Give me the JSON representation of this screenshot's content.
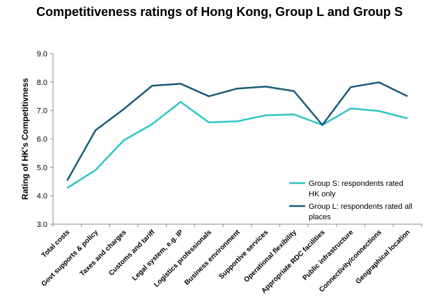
{
  "chart_data": {
    "type": "line",
    "title": "Competitiveness ratings of Hong Kong, Group L and Group S",
    "xlabel": "",
    "ylabel": "Rating of HK's Competitivness",
    "ylim": [
      3.0,
      9.0
    ],
    "yticks": [
      "3.0",
      "4.0",
      "5.0",
      "6.0",
      "7.0",
      "8.0",
      "9.0"
    ],
    "categories": [
      "Total costs",
      "Govt supports & policy",
      "Taxes and charges",
      "Customs and tariff",
      "Legal system, e.g. IP",
      "Logistics professionals",
      "Business environment",
      "Supportive services",
      "Operational flexibility",
      "Appropriate RDC facilities",
      "Public infrastructure",
      "Connectivity/connections",
      "Geographical location"
    ],
    "series": [
      {
        "name": "Group S: respondents rated HK only",
        "legend_lines": [
          "Group S: respondents rated",
          "HK only"
        ],
        "color": "#2ec4c6",
        "values": [
          4.27,
          4.9,
          5.95,
          6.52,
          7.3,
          6.58,
          6.62,
          6.83,
          6.86,
          6.49,
          7.07,
          6.98,
          6.72
        ]
      },
      {
        "name": "Group L: respondents rated all places",
        "legend_lines": [
          "Group L: respondents rated all",
          "places"
        ],
        "color": "#1a5a7a",
        "values": [
          4.53,
          6.3,
          7.05,
          7.87,
          7.94,
          7.5,
          7.77,
          7.84,
          7.68,
          6.49,
          7.82,
          7.99,
          7.5
        ]
      }
    ],
    "grid": false,
    "legend": "lower-right"
  }
}
